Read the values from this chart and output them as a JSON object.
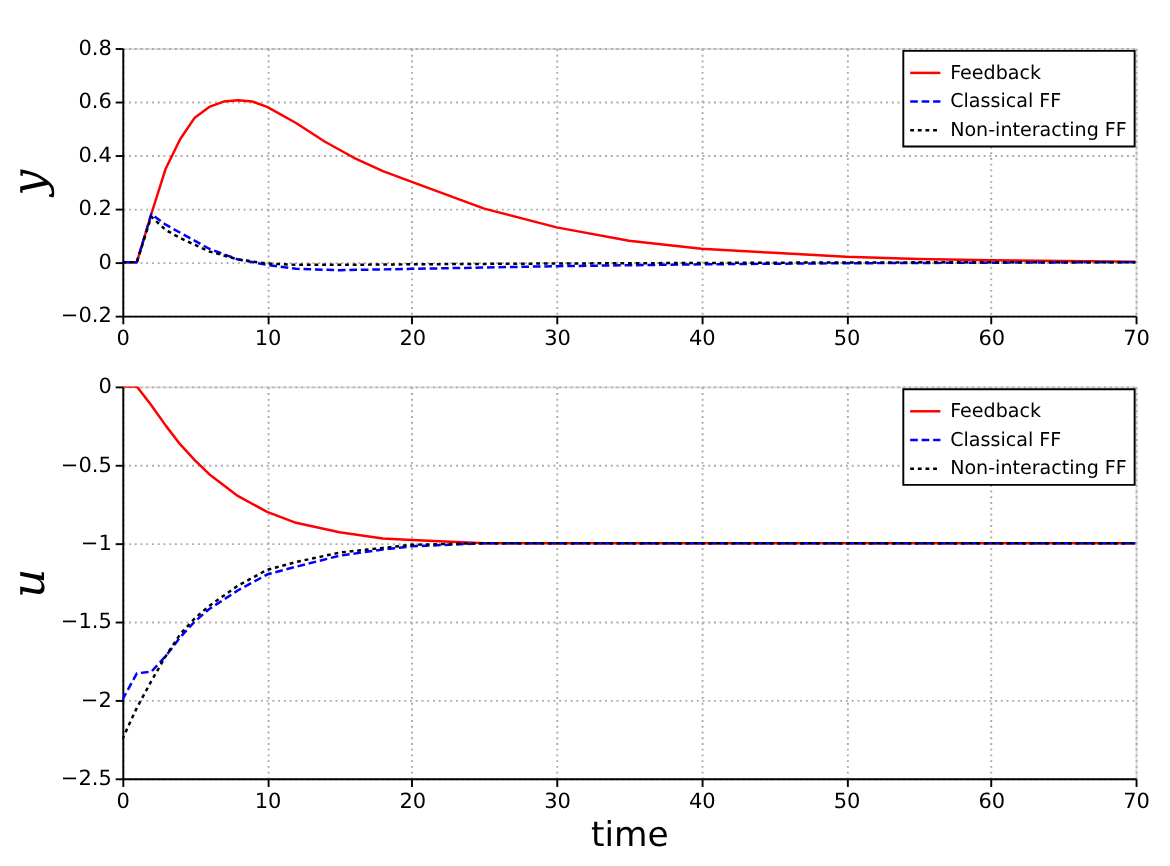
{
  "chart_data": [
    {
      "type": "line",
      "ylabel": "y",
      "xlim": [
        0,
        70
      ],
      "ylim": [
        -0.2,
        0.8
      ],
      "xticks": [
        0,
        10,
        20,
        30,
        40,
        50,
        60,
        70
      ],
      "yticks": [
        -0.2,
        0,
        0.2,
        0.4,
        0.6,
        0.8
      ],
      "grid": true,
      "legend": "top right",
      "series": [
        {
          "name": "Feedback",
          "color": "#ff0000",
          "line_style": "solid",
          "x": [
            0,
            1,
            2,
            3,
            4,
            5,
            6,
            7,
            8,
            9,
            10,
            12,
            14,
            16,
            18,
            20,
            25,
            30,
            35,
            40,
            45,
            50,
            55,
            60,
            65,
            70
          ],
          "values": [
            0,
            0,
            0.18,
            0.35,
            0.46,
            0.54,
            0.58,
            0.6,
            0.605,
            0.6,
            0.58,
            0.52,
            0.45,
            0.39,
            0.34,
            0.3,
            0.2,
            0.13,
            0.08,
            0.05,
            0.035,
            0.02,
            0.012,
            0.007,
            0.004,
            0.002
          ]
        },
        {
          "name": "Classical FF",
          "color": "#0000ff",
          "line_style": "dashed",
          "x": [
            0,
            1,
            2,
            3,
            4,
            6,
            8,
            10,
            12,
            15,
            20,
            25,
            30,
            40,
            50,
            60,
            70
          ],
          "values": [
            0,
            0,
            0.18,
            0.14,
            0.11,
            0.05,
            0.01,
            -0.01,
            -0.025,
            -0.03,
            -0.025,
            -0.02,
            -0.015,
            -0.008,
            -0.004,
            -0.002,
            0
          ]
        },
        {
          "name": "Non-interacting FF",
          "color": "#000000",
          "line_style": "dotted",
          "x": [
            0,
            1,
            2,
            3,
            4,
            6,
            8,
            10,
            12,
            15,
            20,
            30,
            40,
            50,
            70
          ],
          "values": [
            0,
            0,
            0.17,
            0.12,
            0.09,
            0.04,
            0.01,
            -0.005,
            -0.01,
            -0.01,
            -0.008,
            -0.005,
            -0.003,
            -0.001,
            0
          ]
        }
      ]
    },
    {
      "type": "line",
      "ylabel": "u",
      "xlabel": "time",
      "xlim": [
        0,
        70
      ],
      "ylim": [
        -2.5,
        0
      ],
      "xticks": [
        0,
        10,
        20,
        30,
        40,
        50,
        60,
        70
      ],
      "yticks": [
        -2.5,
        -2,
        -1.5,
        -1,
        -0.5,
        0
      ],
      "grid": true,
      "legend": "top right",
      "series": [
        {
          "name": "Feedback",
          "color": "#ff0000",
          "line_style": "solid",
          "x": [
            0,
            1,
            2,
            3,
            4,
            5,
            6,
            8,
            10,
            12,
            15,
            18,
            20,
            25,
            70
          ],
          "values": [
            0,
            0,
            -0.12,
            -0.25,
            -0.37,
            -0.47,
            -0.56,
            -0.7,
            -0.8,
            -0.87,
            -0.93,
            -0.97,
            -0.98,
            -1,
            -1
          ]
        },
        {
          "name": "Classical FF",
          "color": "#0000ff",
          "line_style": "dashed",
          "x": [
            0,
            1,
            2,
            3,
            4,
            5,
            6,
            8,
            10,
            12,
            15,
            18,
            20,
            25,
            70
          ],
          "values": [
            -2,
            -1.83,
            -1.82,
            -1.72,
            -1.6,
            -1.5,
            -1.42,
            -1.3,
            -1.2,
            -1.15,
            -1.08,
            -1.04,
            -1.02,
            -1,
            -1
          ]
        },
        {
          "name": "Non-interacting FF",
          "color": "#000000",
          "line_style": "dotted",
          "x": [
            0,
            1,
            2,
            3,
            4,
            5,
            6,
            8,
            10,
            12,
            15,
            18,
            20,
            25,
            70
          ],
          "values": [
            -2.25,
            -2.05,
            -1.88,
            -1.72,
            -1.58,
            -1.48,
            -1.4,
            -1.27,
            -1.17,
            -1.12,
            -1.06,
            -1.03,
            -1.01,
            -1,
            -1
          ]
        }
      ]
    }
  ]
}
